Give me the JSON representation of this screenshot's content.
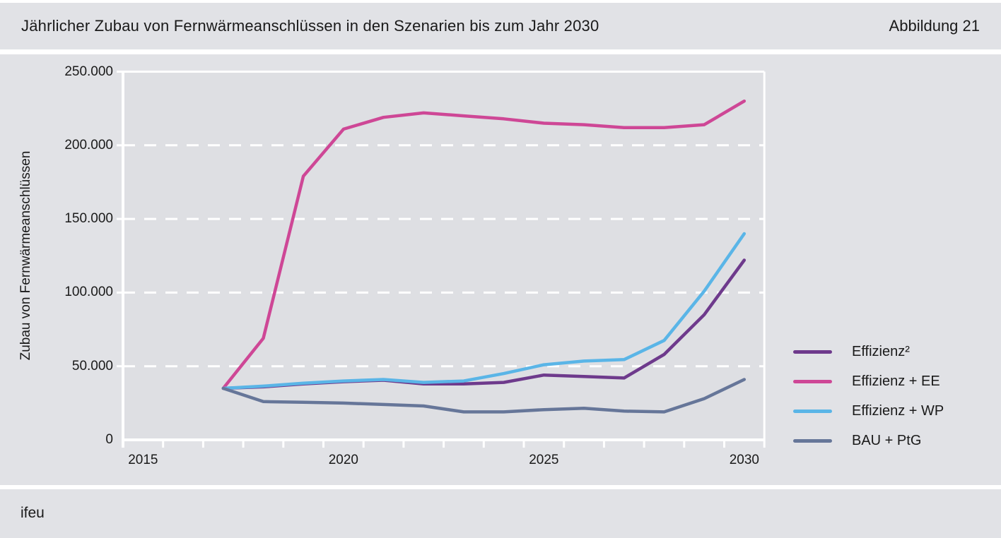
{
  "header": {
    "title": "Jährlicher Zubau von Fernwärmeanschlüssen in den Szenarien bis zum Jahr 2030",
    "figure_label": "Abbildung 21"
  },
  "footer": {
    "source": "ifeu"
  },
  "chart_data": {
    "type": "line",
    "title": "Jährlicher Zubau von Fernwärmeanschlüssen in den Szenarien bis zum Jahr 2030",
    "xlabel": "",
    "ylabel": "Zubau von Fernwärmeanschlüssen",
    "x": [
      2017,
      2018,
      2019,
      2020,
      2021,
      2022,
      2023,
      2024,
      2025,
      2026,
      2027,
      2028,
      2029,
      2030
    ],
    "xaxis_range": [
      2015,
      2031
    ],
    "ylim": [
      0,
      250000
    ],
    "yticks": [
      {
        "value": 0,
        "label": "0"
      },
      {
        "value": 50000,
        "label": "50.000"
      },
      {
        "value": 100000,
        "label": "100.000"
      },
      {
        "value": 150000,
        "label": "150.000"
      },
      {
        "value": 200000,
        "label": "200.000"
      },
      {
        "value": 250000,
        "label": "250.000"
      }
    ],
    "xtick_labels": [
      {
        "value": 2015,
        "label": "2015"
      },
      {
        "value": 2020,
        "label": "2020"
      },
      {
        "value": 2025,
        "label": "2025"
      },
      {
        "value": 2030,
        "label": "2030"
      }
    ],
    "grid": "horizontal-dashed-white",
    "legend_position": "right",
    "series": [
      {
        "id": "effizienz2",
        "name": "Effizienz²",
        "color": "#6e3a8c",
        "values": [
          35000,
          36000,
          38000,
          39500,
          40500,
          38000,
          38000,
          39000,
          44000,
          43000,
          42000,
          58000,
          85000,
          122000
        ]
      },
      {
        "id": "effizienz-ee",
        "name": "Effizienz + EE",
        "color": "#ce4796",
        "values": [
          35000,
          69000,
          179000,
          211000,
          219000,
          222000,
          220000,
          218000,
          215000,
          214000,
          212000,
          212000,
          214000,
          230000
        ]
      },
      {
        "id": "effizienz-wp",
        "name": "Effizienz + WP",
        "color": "#5ab5e7",
        "values": [
          35000,
          36500,
          38500,
          40000,
          41000,
          39000,
          40000,
          45000,
          51000,
          53500,
          54500,
          67500,
          101000,
          140000
        ]
      },
      {
        "id": "bau-ptg",
        "name": "BAU + PtG",
        "color": "#667699",
        "values": [
          35000,
          26000,
          25500,
          25000,
          24000,
          23000,
          19000,
          19000,
          20500,
          21500,
          19500,
          19000,
          28000,
          41000
        ]
      }
    ]
  }
}
